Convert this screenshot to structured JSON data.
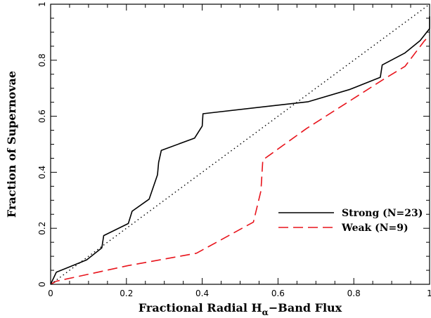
{
  "chart_data": {
    "type": "line",
    "title": "",
    "xlabel": "Fractional Radial H",
    "xlabel_subscript": "α",
    "xlabel_suffix": "−Band Flux",
    "ylabel": "Fraction of Supernovae",
    "xlim": [
      0,
      1
    ],
    "ylim": [
      0,
      1
    ],
    "x_ticks": [
      0,
      0.2,
      0.4,
      0.6,
      0.8,
      1
    ],
    "x_tick_labels": [
      "0",
      "0.2",
      "0.4",
      "0.6",
      "0.8",
      "1"
    ],
    "y_ticks": [
      0,
      0.2,
      0.4,
      0.6,
      0.8,
      1
    ],
    "y_tick_labels": [
      "0",
      "0.2",
      "0.4",
      "0.6",
      "0.8",
      "1"
    ],
    "grid": false,
    "legend_position": "lower-right",
    "series": [
      {
        "name": "Strong (N=23)",
        "color": "#000000",
        "style": "solid",
        "x": [
          0,
          0.015,
          0.095,
          0.135,
          0.14,
          0.205,
          0.215,
          0.26,
          0.282,
          0.285,
          0.292,
          0.38,
          0.4,
          0.402,
          0.68,
          0.79,
          0.87,
          0.875,
          0.935,
          0.975,
          1.0,
          1.0
        ],
        "y": [
          0,
          0.043,
          0.087,
          0.13,
          0.174,
          0.217,
          0.261,
          0.304,
          0.391,
          0.435,
          0.478,
          0.522,
          0.565,
          0.609,
          0.652,
          0.696,
          0.739,
          0.783,
          0.826,
          0.87,
          0.913,
          0.957
        ]
      },
      {
        "name": "Weak (N=9)",
        "color": "#e8141c",
        "style": "dashed",
        "x": [
          0,
          0.015,
          0.205,
          0.385,
          0.535,
          0.555,
          0.56,
          0.675,
          0.88,
          0.935,
          0.985,
          1.0
        ],
        "y": [
          0,
          0.011,
          0.067,
          0.111,
          0.222,
          0.333,
          0.444,
          0.556,
          0.733,
          0.778,
          0.867,
          0.889
        ]
      },
      {
        "name": "",
        "color": "#000000",
        "style": "dotted",
        "x": [
          0,
          1
        ],
        "y": [
          0,
          1
        ]
      }
    ]
  }
}
